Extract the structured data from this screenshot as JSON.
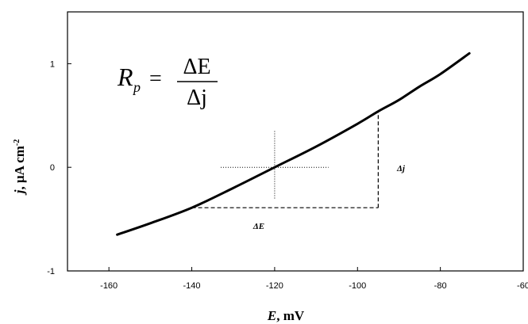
{
  "chart_data": {
    "type": "line",
    "xlabel_var": "E",
    "xlabel_unit": ", mV",
    "ylabel_var": "j",
    "ylabel_unit": ", μA cm",
    "ylabel_exp": "-2",
    "xlim": [
      -170,
      -60
    ],
    "ylim": [
      -1,
      1.5
    ],
    "x_ticks": [
      -160,
      -140,
      -120,
      -100,
      -80,
      -60
    ],
    "y_ticks": [
      -1,
      0,
      1
    ],
    "grid": false,
    "series": [
      {
        "x": [
          -158,
          -150,
          -140,
          -130,
          -120,
          -110,
          -100,
          -95,
          -90,
          -85,
          -80,
          -73
        ],
        "y": [
          -0.65,
          -0.54,
          -0.39,
          -0.2,
          0.0,
          0.2,
          0.42,
          0.54,
          0.65,
          0.78,
          0.9,
          1.1
        ]
      }
    ],
    "crosshair": {
      "x": -120,
      "y": 0,
      "x_range": [
        -133,
        -107
      ],
      "y_range": [
        -0.3,
        0.35
      ]
    },
    "triangle": {
      "x_start": -140,
      "x_end": -95,
      "y_low": -0.39,
      "y_high": 0.54
    },
    "equation": {
      "lhs": "R",
      "lhs_sub": "p",
      "equals": "=",
      "numerator": "ΔE",
      "denominator": "Δj"
    },
    "annotations": {
      "delta_e": "ΔE",
      "delta_j": "Δj"
    }
  }
}
